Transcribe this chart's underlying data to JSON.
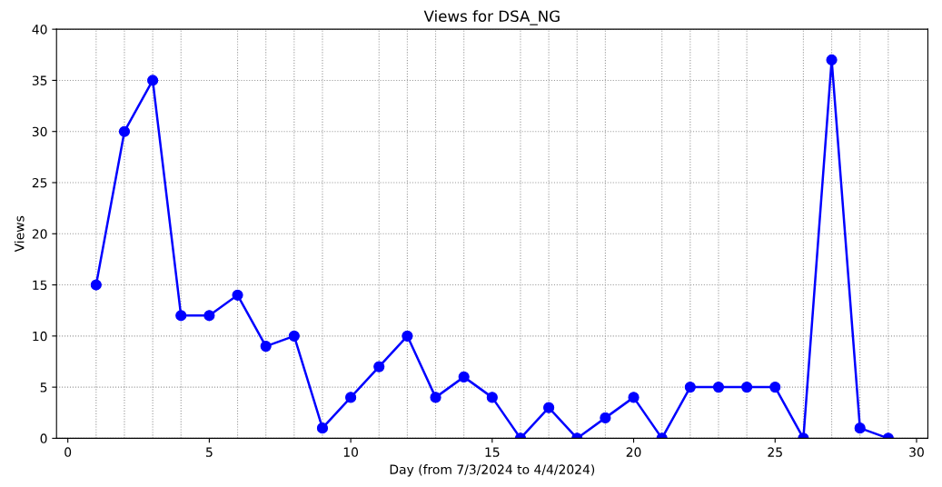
{
  "chart_data": {
    "type": "line",
    "title": "Views for DSA_NG",
    "xlabel": "Day (from 7/3/2024 to 4/4/2024)",
    "ylabel": "Views",
    "x": [
      1,
      2,
      3,
      4,
      5,
      6,
      7,
      8,
      9,
      10,
      11,
      12,
      13,
      14,
      15,
      16,
      17,
      18,
      19,
      20,
      21,
      22,
      23,
      24,
      25,
      26,
      27,
      28,
      29
    ],
    "series": [
      {
        "color": "#0000ff",
        "values": [
          15,
          30,
          35,
          12,
          12,
          14,
          9,
          10,
          1,
          4,
          7,
          10,
          4,
          6,
          4,
          0,
          3,
          0,
          2,
          4,
          0,
          5,
          5,
          5,
          5,
          0,
          37,
          1,
          0
        ]
      }
    ],
    "xlim": [
      -0.4,
      30.4
    ],
    "xticks": [
      0,
      5,
      10,
      15,
      20,
      25,
      30
    ],
    "ylim": [
      0,
      40
    ],
    "yticks": [
      0,
      5,
      10,
      15,
      20,
      25,
      30,
      35,
      40
    ],
    "grid": true,
    "marker": "circle",
    "line_style": "solid"
  }
}
